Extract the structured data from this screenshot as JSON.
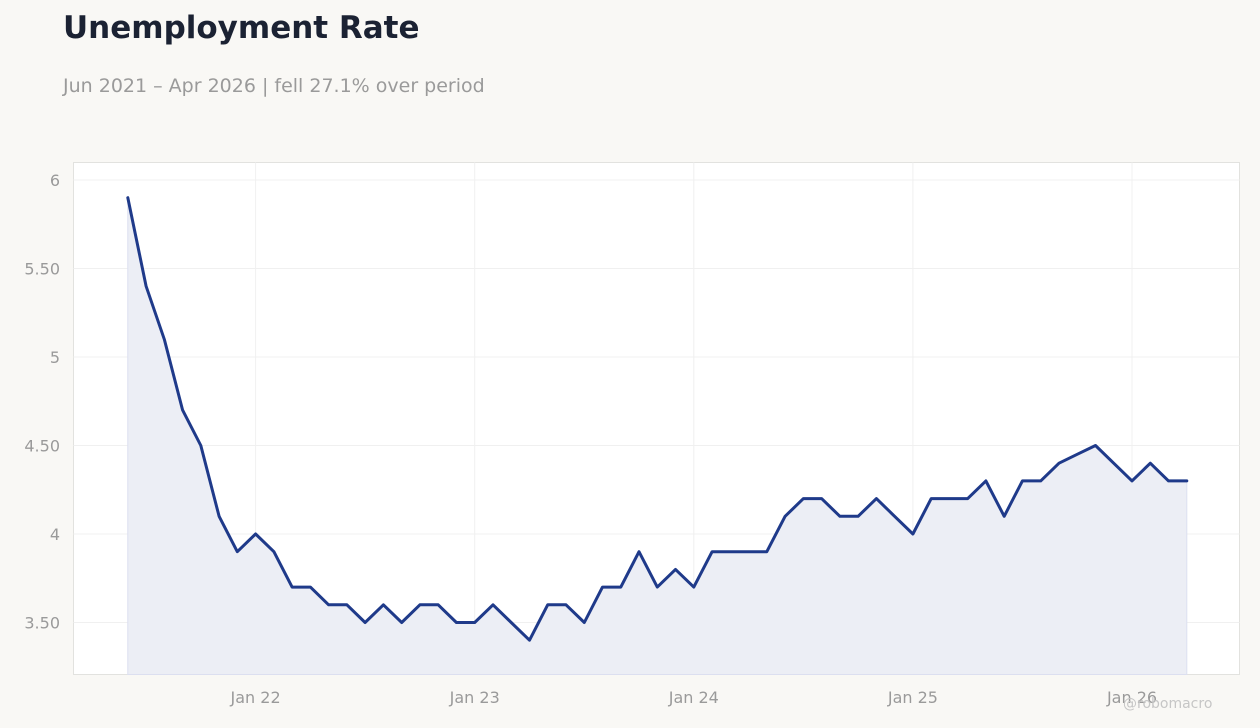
{
  "header": {
    "title": "Unemployment Rate",
    "subtitle": "Jun 2021 – Apr 2026 | fell 27.1% over period"
  },
  "watermark": "@robomacro",
  "colors": {
    "background": "#f9f8f5",
    "plot_background": "#ffffff",
    "line": "#1f3a8a",
    "area_fill": "#eceef5",
    "grid": "#f0f0f0",
    "text_muted": "#9a9a9a",
    "title": "#1b2233"
  },
  "chart_data": {
    "type": "area",
    "title": "Unemployment Rate",
    "subtitle": "Jun 2021 – Apr 2026 | fell 27.1% over period",
    "xlabel": "",
    "ylabel": "",
    "grid": true,
    "legend": "none",
    "xlim": [
      "2021-01-01",
      "2026-07-01"
    ],
    "ylim": [
      3.2,
      6.1
    ],
    "y_ticks": [
      {
        "value": 3.5,
        "label": "3.50"
      },
      {
        "value": 4,
        "label": "4"
      },
      {
        "value": 4.5,
        "label": "4.50"
      },
      {
        "value": 5,
        "label": "5"
      },
      {
        "value": 5.5,
        "label": "5.50"
      },
      {
        "value": 6,
        "label": "6"
      }
    ],
    "x_ticks": [
      {
        "value": "2022-01-01",
        "label": "Jan 22"
      },
      {
        "value": "2023-01-01",
        "label": "Jan 23"
      },
      {
        "value": "2024-01-01",
        "label": "Jan 24"
      },
      {
        "value": "2025-01-01",
        "label": "Jan 25"
      },
      {
        "value": "2026-01-01",
        "label": "Jan 26"
      }
    ],
    "series": [
      {
        "x": [
          "2021-06",
          "2021-07",
          "2021-08",
          "2021-09",
          "2021-10",
          "2021-11",
          "2021-12",
          "2022-01",
          "2022-02",
          "2022-03",
          "2022-04",
          "2022-05",
          "2022-06",
          "2022-07",
          "2022-08",
          "2022-09",
          "2022-10",
          "2022-11",
          "2022-12",
          "2023-01",
          "2023-02",
          "2023-03",
          "2023-04",
          "2023-05",
          "2023-06",
          "2023-07",
          "2023-08",
          "2023-09",
          "2023-10",
          "2023-11",
          "2023-12",
          "2024-01",
          "2024-02",
          "2024-03",
          "2024-04",
          "2024-05",
          "2024-06",
          "2024-07",
          "2024-08",
          "2024-09",
          "2024-10",
          "2024-11",
          "2024-12",
          "2025-01",
          "2025-02",
          "2025-03",
          "2025-04",
          "2025-05",
          "2025-06",
          "2025-07",
          "2025-08",
          "2025-09",
          "2025-10",
          "2025-11",
          "2025-12",
          "2026-01",
          "2026-02",
          "2026-03",
          "2026-04"
        ],
        "y": [
          5.9,
          5.4,
          5.1,
          4.7,
          4.5,
          4.1,
          3.9,
          4.0,
          3.9,
          3.7,
          3.7,
          3.6,
          3.6,
          3.5,
          3.6,
          3.5,
          3.6,
          3.6,
          3.5,
          3.5,
          3.6,
          3.5,
          3.4,
          3.6,
          3.6,
          3.5,
          3.7,
          3.7,
          3.9,
          3.7,
          3.8,
          3.7,
          3.9,
          3.9,
          3.9,
          3.9,
          4.1,
          4.2,
          4.2,
          4.1,
          4.1,
          4.2,
          4.1,
          4.0,
          4.2,
          4.2,
          4.2,
          4.3,
          4.1,
          4.3,
          4.3,
          4.4,
          4.45,
          4.5,
          4.4,
          4.3,
          4.4,
          4.3,
          4.3
        ]
      }
    ]
  }
}
